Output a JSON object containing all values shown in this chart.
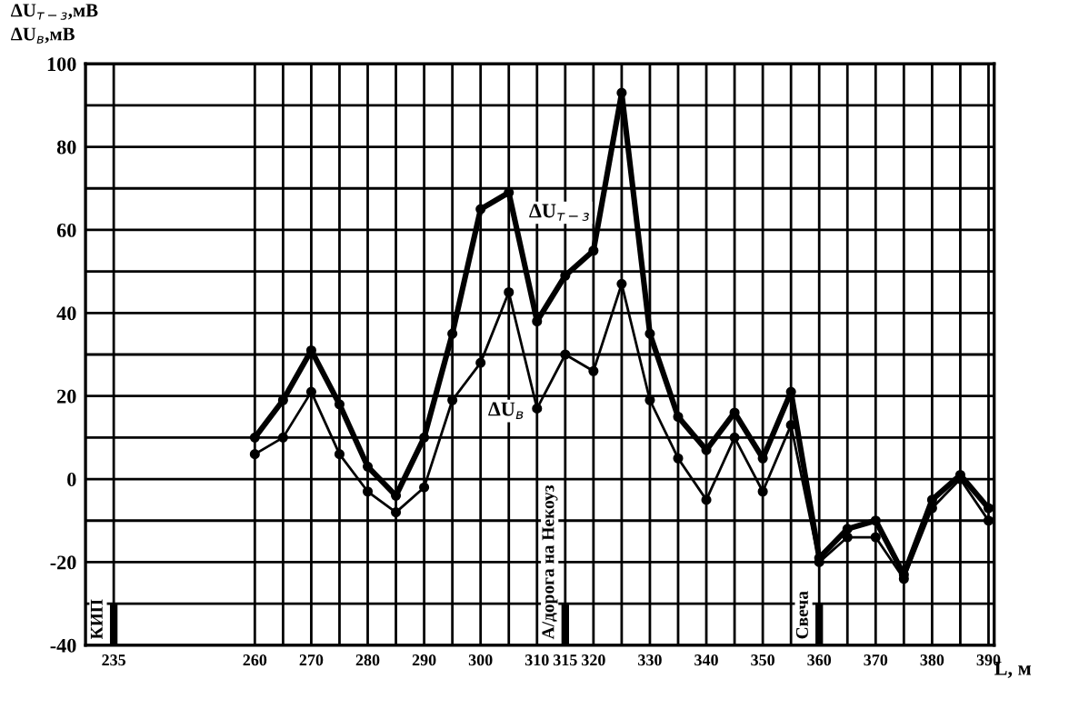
{
  "chart_data": {
    "type": "line",
    "ylabel": "ΔU$_{т−з}$,мВ\nΔU$_{в}$,мВ",
    "xlabel": "L, м",
    "x": [
      260,
      265,
      270,
      275,
      280,
      285,
      290,
      295,
      300,
      305,
      310,
      315,
      320,
      325,
      330,
      335,
      340,
      345,
      350,
      355,
      360,
      365,
      370,
      375,
      380,
      385,
      390
    ],
    "series": [
      {
        "name": "ΔU$_{т−з}$",
        "color": "#000000",
        "values": [
          10,
          19,
          31,
          18,
          3,
          -4,
          10,
          35,
          65,
          69,
          38,
          49,
          55,
          93,
          35,
          15,
          7,
          16,
          5,
          21,
          -19,
          -12,
          -10,
          -23,
          -5,
          1,
          -7
        ]
      },
      {
        "name": "ΔU$_{в}$",
        "color": "#000000",
        "values": [
          6,
          10,
          21,
          6,
          -3,
          -8,
          -2,
          19,
          28,
          45,
          17,
          30,
          26,
          47,
          19,
          5,
          -5,
          10,
          -3,
          13,
          -20,
          -14,
          -14,
          -24,
          -7,
          0,
          -10
        ]
      }
    ],
    "ref_lines": [
      {
        "axis": "x",
        "value": 235,
        "label": "КИП"
      },
      {
        "axis": "x",
        "value": 315,
        "label": "А/дорога на Некоуз"
      },
      {
        "axis": "x",
        "value": 360,
        "label": "Свеча"
      }
    ],
    "xlim": [
      230,
      391
    ],
    "ylim": [
      -40,
      100
    ],
    "xticks": [
      235,
      260,
      {
        "value": 265,
        "label": null
      },
      270,
      {
        "value": 275,
        "label": null
      },
      280,
      {
        "value": 285,
        "label": null
      },
      290,
      {
        "value": 295,
        "label": null
      },
      300,
      {
        "value": 305,
        "label": null
      },
      310,
      315,
      320,
      {
        "value": 325,
        "label": null
      },
      330,
      {
        "value": 335,
        "label": null
      },
      340,
      {
        "value": 345,
        "label": null
      },
      350,
      {
        "value": 355,
        "label": null
      },
      360,
      {
        "value": 365,
        "label": null
      },
      370,
      {
        "value": 375,
        "label": null
      },
      380,
      {
        "value": 385,
        "label": null
      },
      390
    ],
    "yticks": [
      -40,
      {
        "value": -30,
        "label": null
      },
      -20,
      {
        "value": -10,
        "label": null
      },
      0,
      {
        "value": 10,
        "label": null
      },
      20,
      {
        "value": 30,
        "label": null
      },
      40,
      {
        "value": 50,
        "label": null
      },
      60,
      {
        "value": 70,
        "label": null
      },
      80,
      {
        "value": 90,
        "label": null
      },
      100
    ],
    "grid": true,
    "legend": false,
    "marker": "circle",
    "line_style": "solid"
  }
}
